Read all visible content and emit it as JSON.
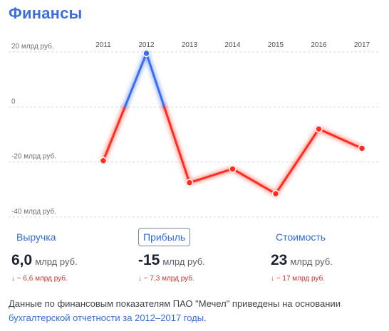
{
  "header": {
    "title": "Финансы"
  },
  "chart_data": {
    "type": "line",
    "x": [
      "2011",
      "2012",
      "2013",
      "2014",
      "2015",
      "2016",
      "2017"
    ],
    "series": [
      {
        "values": [
          -19.5,
          19.5,
          -27.5,
          -22.5,
          -31.5,
          -8,
          -15
        ]
      }
    ],
    "yticks": [
      {
        "value": 20,
        "label": "20 млрд руб."
      },
      {
        "value": 0,
        "label": "0"
      },
      {
        "value": -20,
        "label": "-20 млрд руб."
      },
      {
        "value": -40,
        "label": "-40 млрд руб."
      }
    ],
    "ylim": [
      -40,
      20
    ],
    "colors": {
      "positive": "#3a6ef0",
      "negative": "#ff2d1f"
    },
    "grid": true
  },
  "metrics": [
    {
      "label": "Выручка",
      "value": "6,0",
      "unit": "млрд руб.",
      "change": "↓ − 6,6 млрд руб.",
      "active": false
    },
    {
      "label": "Прибыль",
      "value": "-15",
      "unit": "млрд руб.",
      "change": "↓ − 7,3 млрд руб.",
      "active": true
    },
    {
      "label": "Стоимость",
      "value": "23",
      "unit": "млрд руб.",
      "change": "↓ − 17 млрд руб.",
      "active": false
    }
  ],
  "note": {
    "text": "Данные по финансовым показателям ПАО \"Мечел\" приведены на основании ",
    "link": "бухгалтерской отчетности за 2012–2017 годы",
    "end": "."
  }
}
